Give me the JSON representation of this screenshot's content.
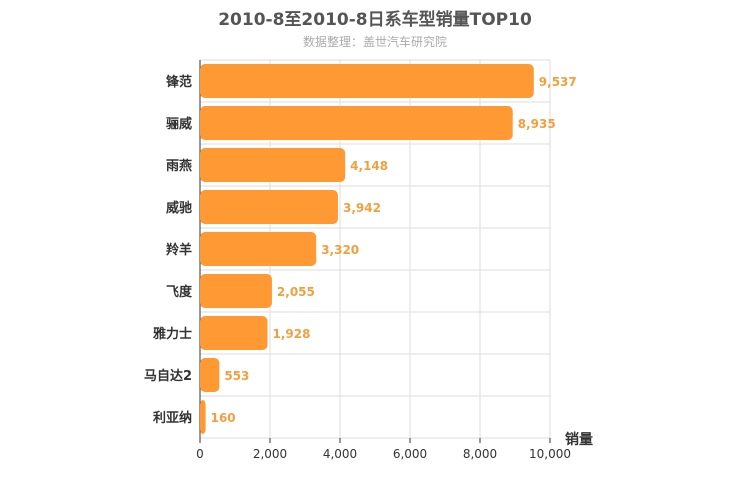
{
  "title": "2010-8至2010-8日系车型销量TOP10",
  "subtitle": "数据整理：盖世汽车研究院",
  "colors": {
    "bar": "#FF9933",
    "data_label": "#F0A040",
    "grid": "#dddddd",
    "axis": "#333333"
  },
  "chart_data": {
    "type": "bar",
    "orientation": "horizontal",
    "title": "2010-8至2010-8日系车型销量TOP10",
    "subtitle": "数据整理：盖世汽车研究院",
    "categories": [
      "锋范",
      "骊威",
      "雨燕",
      "威驰",
      "羚羊",
      "飞度",
      "雅力士",
      "马自达2",
      "利亚纳"
    ],
    "values": [
      9537,
      8935,
      4148,
      3942,
      3320,
      2055,
      1928,
      553,
      160
    ],
    "value_labels": [
      "9,537",
      "8,935",
      "4,148",
      "3,942",
      "3,320",
      "2,055",
      "1,928",
      "553",
      "160"
    ],
    "x_ticks": [
      0,
      2000,
      4000,
      6000,
      8000,
      10000
    ],
    "x_tick_labels": [
      "0",
      "2,000",
      "4,000",
      "6,000",
      "8,000",
      "10,000"
    ],
    "xlabel": "销量",
    "ylabel": "",
    "xlim": [
      0,
      10000
    ],
    "grid": true,
    "legend": false
  }
}
